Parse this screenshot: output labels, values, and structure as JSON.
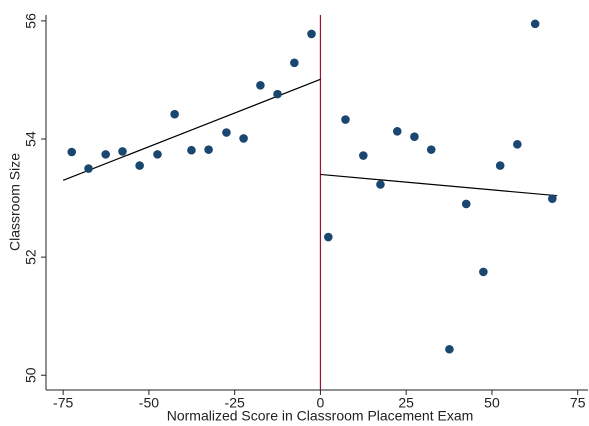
{
  "chart_data": {
    "type": "scatter",
    "x_label": "Normalized Score in Classroom Placement Exam",
    "y_label": "Classroom Size",
    "x": [
      -72.5,
      -67.6,
      -62.6,
      -57.7,
      -52.7,
      -47.5,
      -42.5,
      -37.6,
      -32.6,
      -27.4,
      -22.4,
      -17.5,
      -12.5,
      -7.6,
      -2.6,
      2.3,
      7.3,
      12.5,
      17.5,
      22.4,
      27.4,
      32.3,
      37.6,
      42.5,
      47.5,
      52.4,
      57.4,
      62.6,
      67.6
    ],
    "values": [
      53.78,
      53.5,
      53.74,
      53.79,
      53.55,
      53.74,
      54.42,
      53.81,
      53.82,
      54.11,
      54.01,
      54.91,
      54.76,
      55.29,
      55.78,
      52.34,
      54.33,
      53.72,
      53.23,
      54.13,
      54.04,
      53.82,
      50.44,
      52.9,
      51.75,
      53.55,
      53.91,
      55.95,
      52.99
    ],
    "color": "#1a476f",
    "fit_lines": [
      {
        "x": [
          -75,
          0
        ],
        "values": [
          53.3,
          55.01
        ],
        "color": "#000000"
      },
      {
        "x": [
          0,
          69
        ],
        "values": [
          53.4,
          53.04
        ],
        "color": "#000000"
      }
    ],
    "cutoff": 0,
    "cutoff_color": "#a0102a",
    "xlim": [
      -80,
      78
    ],
    "ylim": [
      49.75,
      56.1
    ],
    "xticks": [
      -75,
      -50,
      -25,
      0,
      25,
      50,
      75
    ],
    "yticks": [
      50,
      52,
      54,
      56
    ]
  }
}
